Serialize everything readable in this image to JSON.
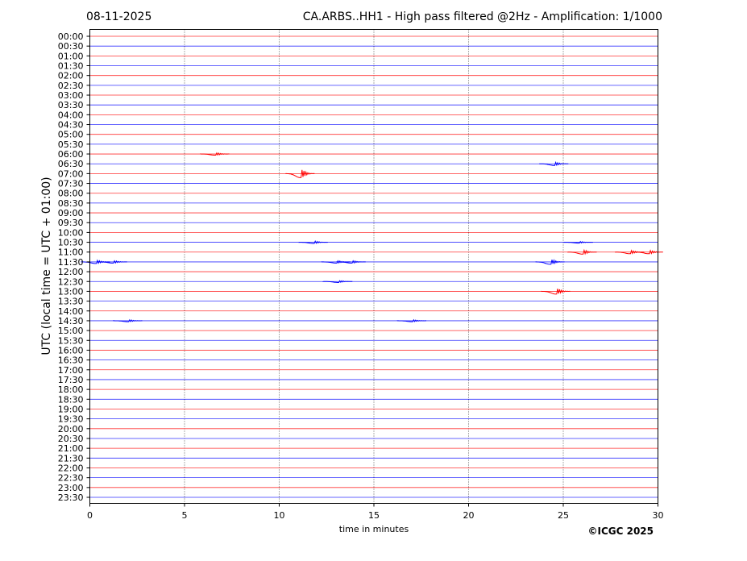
{
  "header": {
    "date": "08-11-2025",
    "title": "CA.ARBS..HH1 - High pass filtered @2Hz - Amplification: 1/1000"
  },
  "footer": {
    "copyright": "©ICGC 2025"
  },
  "chart_data": {
    "type": "line",
    "title": "CA.ARBS..HH1 - High pass filtered @2Hz - Amplification: 1/1000",
    "xlabel": "time in minutes",
    "ylabel": "UTC (local time = UTC + 01:00)",
    "xlim": [
      0,
      30
    ],
    "xticks": [
      "0",
      "5",
      "10",
      "15",
      "20",
      "25",
      "30"
    ],
    "grid": "vertical dotted at every 5 minutes",
    "series_colors": [
      "#ff0000",
      "#0000ff"
    ],
    "rows": [
      "00:00",
      "00:30",
      "01:00",
      "01:30",
      "02:00",
      "02:30",
      "03:00",
      "03:30",
      "04:00",
      "04:30",
      "05:00",
      "05:30",
      "06:00",
      "06:30",
      "07:00",
      "07:30",
      "08:00",
      "08:30",
      "09:00",
      "09:30",
      "10:00",
      "10:30",
      "11:00",
      "11:30",
      "12:00",
      "12:30",
      "13:00",
      "13:30",
      "14:00",
      "14:30",
      "15:00",
      "15:30",
      "16:00",
      "16:30",
      "17:00",
      "17:30",
      "18:00",
      "18:30",
      "19:00",
      "19:30",
      "20:00",
      "20:30",
      "21:00",
      "21:30",
      "22:00",
      "22:30",
      "23:00",
      "23:30"
    ],
    "events": [
      {
        "row": "06:00",
        "minute": 6.6,
        "amplitude": 1.5
      },
      {
        "row": "06:30",
        "minute": 24.5,
        "amplitude": 2
      },
      {
        "row": "07:00",
        "minute": 11.1,
        "amplitude": 5
      },
      {
        "row": "10:30",
        "minute": 11.8,
        "amplitude": 1.5
      },
      {
        "row": "10:30",
        "minute": 25.8,
        "amplitude": 1
      },
      {
        "row": "11:00",
        "minute": 26.0,
        "amplitude": 2.5
      },
      {
        "row": "11:00",
        "minute": 28.5,
        "amplitude": 2
      },
      {
        "row": "11:00",
        "minute": 29.5,
        "amplitude": 2
      },
      {
        "row": "11:30",
        "minute": 0.3,
        "amplitude": 2
      },
      {
        "row": "11:30",
        "minute": 1.2,
        "amplitude": 1.5
      },
      {
        "row": "11:30",
        "minute": 13.0,
        "amplitude": 1.5
      },
      {
        "row": "11:30",
        "minute": 13.8,
        "amplitude": 1.5
      },
      {
        "row": "11:30",
        "minute": 24.3,
        "amplitude": 3
      },
      {
        "row": "12:30",
        "minute": 13.1,
        "amplitude": 1.2
      },
      {
        "row": "13:00",
        "minute": 24.6,
        "amplitude": 3.5
      },
      {
        "row": "14:30",
        "minute": 2.0,
        "amplitude": 1.2
      },
      {
        "row": "14:30",
        "minute": 17.0,
        "amplitude": 1.2
      }
    ]
  }
}
